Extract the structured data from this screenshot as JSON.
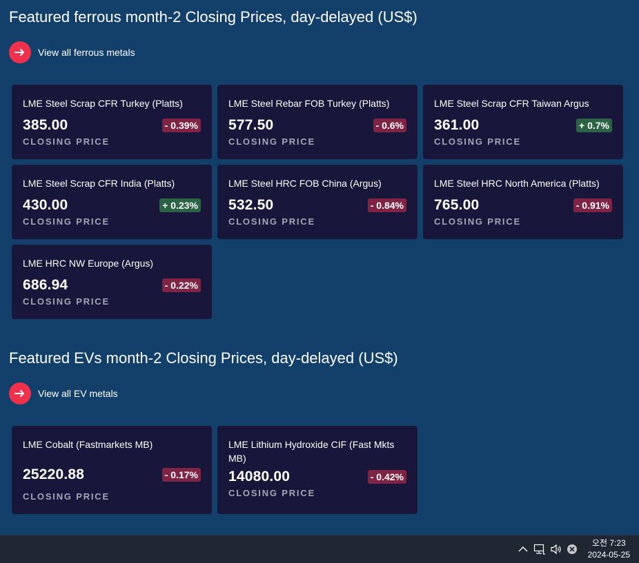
{
  "sections": [
    {
      "title": "Featured ferrous month-2 Closing Prices, day-delayed (US$)",
      "view_all_label": "View all ferrous metals",
      "cards": [
        {
          "name": "LME Steel Scrap CFR Turkey (Platts)",
          "price": "385.00",
          "change": "- 0.39%",
          "direction": "down",
          "caption": "CLOSING PRICE"
        },
        {
          "name": "LME Steel Rebar FOB Turkey (Platts)",
          "price": "577.50",
          "change": "- 0.6%",
          "direction": "down",
          "caption": "CLOSING PRICE"
        },
        {
          "name": "LME Steel Scrap CFR Taiwan Argus",
          "price": "361.00",
          "change": "+ 0.7%",
          "direction": "up",
          "caption": "CLOSING PRICE"
        },
        {
          "name": "LME Steel Scrap CFR India (Platts)",
          "price": "430.00",
          "change": "+ 0.23%",
          "direction": "up",
          "caption": "CLOSING PRICE"
        },
        {
          "name": "LME Steel HRC FOB China (Argus)",
          "price": "532.50",
          "change": "- 0.84%",
          "direction": "down",
          "caption": "CLOSING PRICE"
        },
        {
          "name": "LME Steel HRC North America (Platts)",
          "price": "765.00",
          "change": "- 0.91%",
          "direction": "down",
          "caption": "CLOSING PRICE"
        },
        {
          "name": "LME HRC NW Europe (Argus)",
          "price": "686.94",
          "change": "- 0.22%",
          "direction": "down",
          "caption": "CLOSING PRICE"
        }
      ]
    },
    {
      "title": "Featured EVs month-2 Closing Prices, day-delayed (US$)",
      "view_all_label": "View all EV metals",
      "cards": [
        {
          "name": "LME Cobalt (Fastmarkets MB)",
          "price": "25220.88",
          "change": "- 0.17%",
          "direction": "down",
          "caption": "CLOSING PRICE"
        },
        {
          "name": "LME Lithium Hydroxide CIF (Fast Mkts MB)",
          "price": "14080.00",
          "change": "- 0.42%",
          "direction": "down",
          "caption": "CLOSING PRICE"
        }
      ]
    }
  ],
  "taskbar": {
    "time": "오전 7:23",
    "date": "2024-05-25",
    "icons": [
      "chevron-up-icon",
      "network-icon",
      "volume-icon",
      "close-circle-icon"
    ]
  },
  "colors": {
    "background": "#13406a",
    "card": "#18173b",
    "accent": "#f0314d",
    "negative_badge": "#7f2444",
    "positive_badge": "#2b6344"
  }
}
